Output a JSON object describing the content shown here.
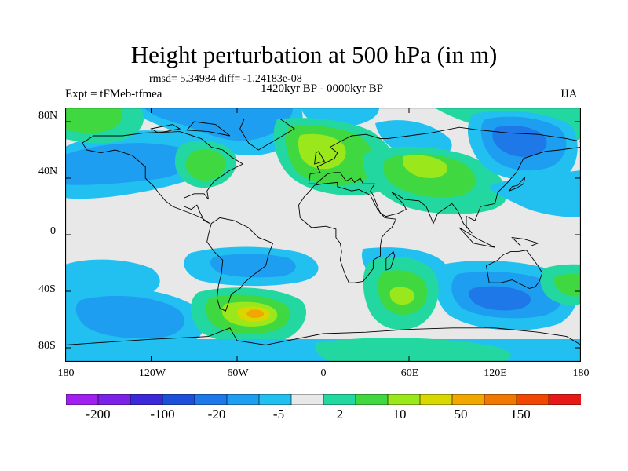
{
  "figure": {
    "title": "Height perturbation at 500 hPa (in m)",
    "stats_line": "rmsd= 5.34984 diff= -1.24183e-08",
    "period": "1420kyr BP - 0000kyr BP",
    "experiment": "Expt = tFMeb-tfmea",
    "season": "JJA"
  },
  "axes": {
    "y_ticks": [
      "80N",
      "40N",
      "0",
      "40S",
      "80S"
    ],
    "x_ticks": [
      "180",
      "120W",
      "60W",
      "0",
      "60E",
      "120E",
      "180"
    ]
  },
  "colorbar": {
    "labels": [
      "-200",
      "-100",
      "-20",
      "-5",
      "2",
      "10",
      "50",
      "150"
    ],
    "colors": [
      "#a020f0",
      "#7a22e8",
      "#3c28d8",
      "#1e4fd8",
      "#1e78e8",
      "#1e9ef0",
      "#22c0f0",
      "#e8e8e8",
      "#22d8a0",
      "#40d840",
      "#9ae81c",
      "#d8d800",
      "#f0a800",
      "#f07800",
      "#f04800",
      "#e81818"
    ]
  },
  "map_colors": {
    "neutral": "#e8e8e8",
    "neg_weak": "#22c0f0",
    "neg_mid": "#1e9ef0",
    "neg_strong": "#1e78e8",
    "pos_weak": "#22d8a0",
    "pos_mid": "#40d840",
    "pos_strong": "#9ae81c",
    "pos_peak": "#d8d800",
    "pos_max": "#f0a800"
  }
}
